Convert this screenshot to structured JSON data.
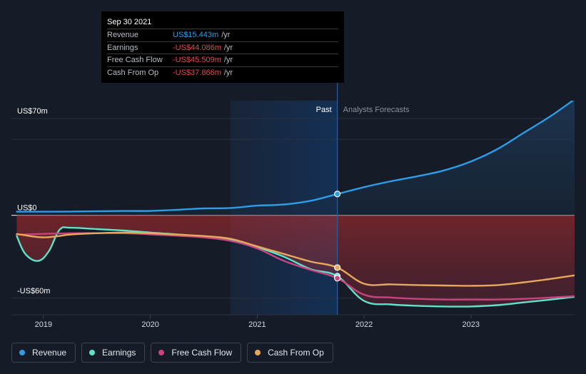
{
  "tooltip": {
    "date": "Sep 30 2021",
    "rows": [
      {
        "label": "Revenue",
        "value": "US$15.443m",
        "unit": "/yr",
        "color": "#2d9de8"
      },
      {
        "label": "Earnings",
        "value": "-US$44.086m",
        "unit": "/yr",
        "color": "#e8474a"
      },
      {
        "label": "Free Cash Flow",
        "value": "-US$45.509m",
        "unit": "/yr",
        "color": "#e8474a"
      },
      {
        "label": "Cash From Op",
        "value": "-US$37.866m",
        "unit": "/yr",
        "color": "#e8474a"
      }
    ]
  },
  "legend": [
    {
      "label": "Revenue",
      "color": "#2d9de8"
    },
    {
      "label": "Earnings",
      "color": "#5fe2c9"
    },
    {
      "label": "Free Cash Flow",
      "color": "#c9447e"
    },
    {
      "label": "Cash From Op",
      "color": "#e8a85a"
    }
  ],
  "chart_data": {
    "type": "line",
    "title": "",
    "xlabel": "",
    "ylabel": "",
    "xlim": [
      2018.7,
      2023.97
    ],
    "ylim": [
      -72,
      83
    ],
    "y_ticks": [
      {
        "value": 70,
        "label": "US$70m"
      },
      {
        "value": 0,
        "label": "US$0"
      },
      {
        "value": -60,
        "label": "-US$60m"
      }
    ],
    "x_ticks": [
      {
        "value": 2019,
        "label": "2019"
      },
      {
        "value": 2020,
        "label": "2020"
      },
      {
        "value": 2021,
        "label": "2021"
      },
      {
        "value": 2022,
        "label": "2022"
      },
      {
        "value": 2023,
        "label": "2023"
      }
    ],
    "past_label": "Past",
    "forecast_label": "Analysts Forecasts",
    "divider_x": 2021.75,
    "past_shade_start": 2020.75,
    "series": [
      {
        "name": "Revenue",
        "color": "#2d9de8",
        "points": [
          [
            2018.75,
            2.6
          ],
          [
            2019.25,
            2.7
          ],
          [
            2019.75,
            3.1
          ],
          [
            2020.0,
            3.2
          ],
          [
            2020.25,
            4.0
          ],
          [
            2020.5,
            5.0
          ],
          [
            2020.75,
            5.3
          ],
          [
            2021.0,
            7.0
          ],
          [
            2021.25,
            7.8
          ],
          [
            2021.5,
            10.5
          ],
          [
            2021.75,
            15.443
          ],
          [
            2022.0,
            20.4
          ],
          [
            2022.25,
            24.6
          ],
          [
            2022.5,
            28.3
          ],
          [
            2022.75,
            32.5
          ],
          [
            2023.0,
            39.0
          ],
          [
            2023.25,
            48.0
          ],
          [
            2023.5,
            60.0
          ],
          [
            2023.75,
            72.0
          ],
          [
            2023.97,
            84.0
          ]
        ]
      },
      {
        "name": "Earnings",
        "color": "#5fe2c9",
        "points": [
          [
            2018.75,
            -15.0
          ],
          [
            2018.83,
            -28.0
          ],
          [
            2018.95,
            -33.0
          ],
          [
            2019.05,
            -26.0
          ],
          [
            2019.15,
            -10.5
          ],
          [
            2019.25,
            -9.0
          ],
          [
            2019.5,
            -10.0
          ],
          [
            2019.75,
            -11.0
          ],
          [
            2020.0,
            -12.5
          ],
          [
            2020.25,
            -13.8
          ],
          [
            2020.5,
            -15.5
          ],
          [
            2020.75,
            -17.5
          ],
          [
            2021.0,
            -23.0
          ],
          [
            2021.25,
            -30.0
          ],
          [
            2021.5,
            -39.0
          ],
          [
            2021.75,
            -44.086
          ],
          [
            2022.0,
            -62.0
          ],
          [
            2022.25,
            -64.5
          ],
          [
            2022.5,
            -65.5
          ],
          [
            2022.75,
            -66.0
          ],
          [
            2023.0,
            -66.0
          ],
          [
            2023.25,
            -65.0
          ],
          [
            2023.5,
            -63.0
          ],
          [
            2023.75,
            -61.0
          ],
          [
            2023.97,
            -59.0
          ]
        ]
      },
      {
        "name": "Free Cash Flow",
        "color": "#c9447e",
        "points": [
          [
            2018.75,
            -14.0
          ],
          [
            2019.25,
            -13.0
          ],
          [
            2019.75,
            -13.0
          ],
          [
            2020.0,
            -13.8
          ],
          [
            2020.25,
            -14.8
          ],
          [
            2020.5,
            -16.0
          ],
          [
            2020.75,
            -18.5
          ],
          [
            2021.0,
            -24.0
          ],
          [
            2021.25,
            -33.0
          ],
          [
            2021.5,
            -39.5
          ],
          [
            2021.75,
            -45.509
          ],
          [
            2022.0,
            -57.5
          ],
          [
            2022.25,
            -59.5
          ],
          [
            2022.5,
            -60.5
          ],
          [
            2022.75,
            -61.0
          ],
          [
            2023.0,
            -61.0
          ],
          [
            2023.25,
            -61.0
          ],
          [
            2023.5,
            -60.5
          ],
          [
            2023.75,
            -59.5
          ],
          [
            2023.97,
            -58.5
          ]
        ]
      },
      {
        "name": "Cash From Op",
        "color": "#e8a85a",
        "points": [
          [
            2018.75,
            -13.5
          ],
          [
            2019.0,
            -16.0
          ],
          [
            2019.25,
            -14.0
          ],
          [
            2019.5,
            -13.0
          ],
          [
            2019.75,
            -12.5
          ],
          [
            2020.0,
            -13.0
          ],
          [
            2020.25,
            -14.0
          ],
          [
            2020.5,
            -15.0
          ],
          [
            2020.75,
            -17.0
          ],
          [
            2021.0,
            -22.5
          ],
          [
            2021.25,
            -28.0
          ],
          [
            2021.5,
            -33.5
          ],
          [
            2021.75,
            -37.866
          ],
          [
            2022.0,
            -49.5
          ],
          [
            2022.25,
            -50.0
          ],
          [
            2022.5,
            -50.5
          ],
          [
            2022.75,
            -50.8
          ],
          [
            2023.0,
            -51.0
          ],
          [
            2023.25,
            -50.5
          ],
          [
            2023.5,
            -48.5
          ],
          [
            2023.75,
            -46.0
          ],
          [
            2023.97,
            -43.5
          ]
        ]
      }
    ],
    "highlight_x": 2021.75,
    "negative_fill_color": "#c0302f",
    "positive_fill_color": "#1c3650"
  }
}
